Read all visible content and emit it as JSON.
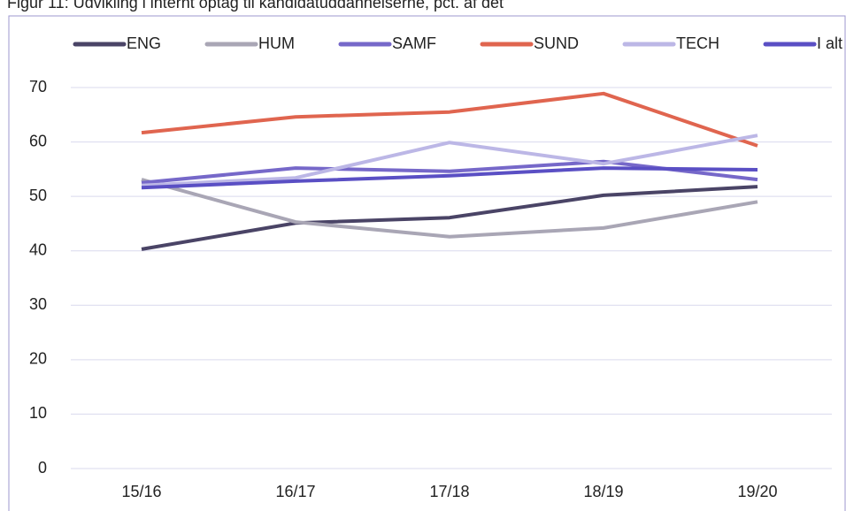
{
  "chart_data": {
    "type": "line",
    "title": "Figur 11: Udvikling i internt optag til kandidatuddannelserne, pct. af det",
    "categories": [
      "15/16",
      "16/17",
      "17/18",
      "18/19",
      "19/20"
    ],
    "series": [
      {
        "name": "ENG",
        "color": "#4a4466",
        "values": [
          40.3,
          45.1,
          46.1,
          50.2,
          51.8
        ]
      },
      {
        "name": "HUM",
        "color": "#a9a6b5",
        "values": [
          53.1,
          45.3,
          42.6,
          44.2,
          49.0
        ]
      },
      {
        "name": "SAMF",
        "color": "#7668c9",
        "values": [
          52.5,
          55.2,
          54.6,
          56.4,
          53.1
        ]
      },
      {
        "name": "SUND",
        "color": "#e0654f",
        "values": [
          61.7,
          64.6,
          65.5,
          68.9,
          59.3
        ]
      },
      {
        "name": "TECH",
        "color": "#bcb7e6",
        "values": [
          52.0,
          53.4,
          59.9,
          56.0,
          61.2
        ]
      },
      {
        "name": "I alt",
        "color": "#5a4fc4",
        "values": [
          51.6,
          52.8,
          53.8,
          55.2,
          54.9
        ]
      }
    ],
    "ylim": [
      0,
      70
    ],
    "yticks": [
      0,
      10,
      20,
      30,
      40,
      50,
      60,
      70
    ],
    "grid": true,
    "legend": "top"
  }
}
